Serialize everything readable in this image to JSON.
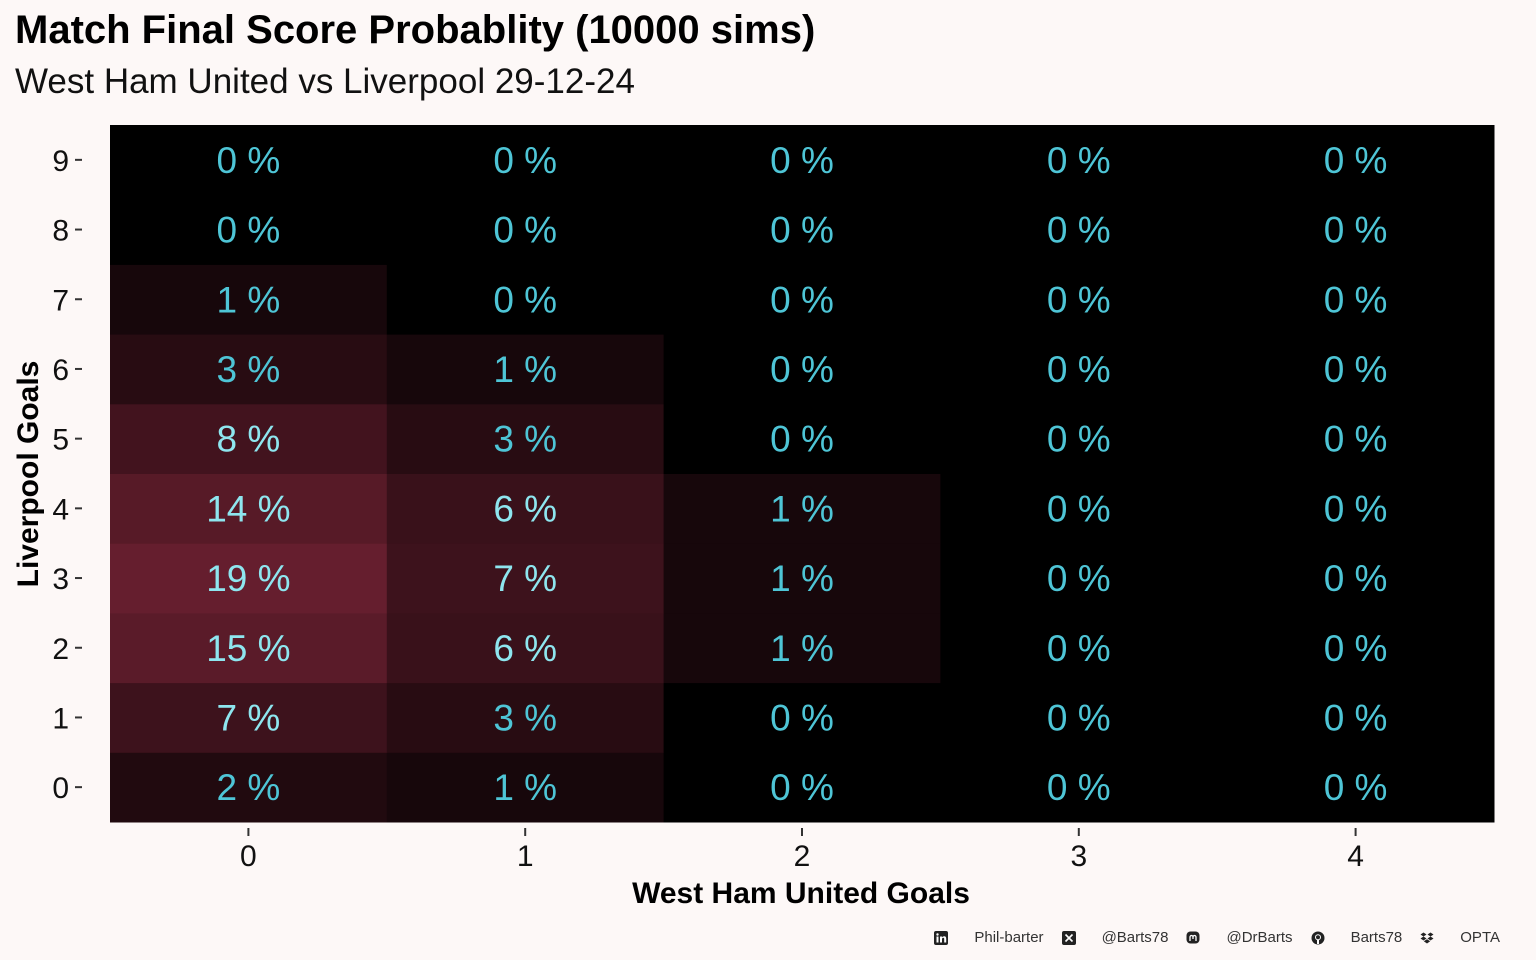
{
  "title": "Match Final Score Probablity (10000 sims)",
  "subtitle": "West Ham United vs Liverpool 29-12-24",
  "chart_data": {
    "type": "heatmap",
    "xlabel": "West Ham United Goals",
    "ylabel": "Liverpool Goals",
    "x_categories": [
      "0",
      "1",
      "2",
      "3",
      "4"
    ],
    "y_categories": [
      "0",
      "1",
      "2",
      "3",
      "4",
      "5",
      "6",
      "7",
      "8",
      "9"
    ],
    "values": [
      [
        2,
        1,
        0,
        0,
        0
      ],
      [
        7,
        3,
        0,
        0,
        0
      ],
      [
        15,
        6,
        1,
        0,
        0
      ],
      [
        19,
        7,
        1,
        0,
        0
      ],
      [
        14,
        6,
        1,
        0,
        0
      ],
      [
        8,
        3,
        0,
        0,
        0
      ],
      [
        3,
        1,
        0,
        0,
        0
      ],
      [
        1,
        0,
        0,
        0,
        0
      ],
      [
        0,
        0,
        0,
        0,
        0
      ],
      [
        0,
        0,
        0,
        0,
        0
      ]
    ],
    "value_suffix": " %",
    "colors": {
      "low": "#000000",
      "high": "#651e2e",
      "label_low": "#4ec5d6",
      "label_high": "#8ee6ef"
    }
  },
  "caption": {
    "items": [
      {
        "icon": "linkedin-icon",
        "text": "Phil-barter"
      },
      {
        "icon": "x-twitter-icon",
        "text": "@Barts78"
      },
      {
        "icon": "mastodon-icon",
        "text": "@DrBarts"
      },
      {
        "icon": "github-icon",
        "text": "Barts78"
      },
      {
        "icon": "dropbox-icon",
        "text": "OPTA"
      }
    ]
  }
}
